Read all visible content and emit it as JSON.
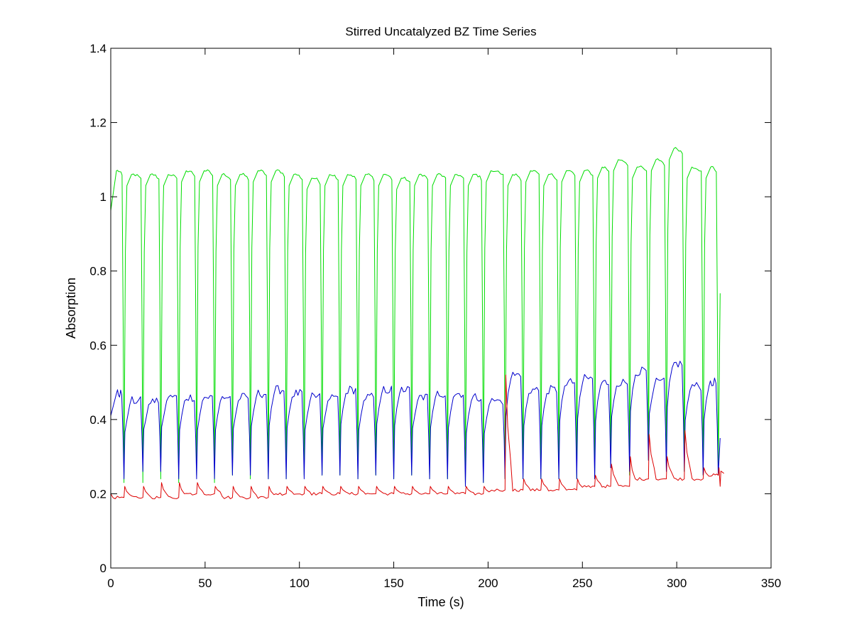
{
  "chart_data": {
    "type": "line",
    "title": "Stirred Uncatalyzed BZ Time Series",
    "xlabel": "Time (s)",
    "ylabel": "Absorption",
    "xlim": [
      0,
      350
    ],
    "ylim": [
      0,
      1.4
    ],
    "xticks": [
      0,
      50,
      100,
      150,
      200,
      250,
      300,
      350
    ],
    "xtick_labels": [
      "0",
      "50",
      "100",
      "150",
      "200",
      "250",
      "300",
      "350"
    ],
    "yticks": [
      0,
      0.2,
      0.4,
      0.6,
      0.8,
      1.0,
      1.2,
      1.4
    ],
    "ytick_labels": [
      "0",
      "0.2",
      "0.4",
      "0.6",
      "0.8",
      "1",
      "1.2",
      "1.4"
    ],
    "grid": false,
    "legend": "none",
    "series": [
      {
        "color": "#00dd00",
        "period_s": 9.5,
        "x_start": 0,
        "x_end": 323,
        "trough_times": [
          7,
          17,
          26.5,
          36,
          45.5,
          55,
          64.5,
          74,
          83.5,
          93,
          102.5,
          112,
          121.5,
          131,
          140.5,
          150,
          159.5,
          169,
          178.5,
          188,
          197.5,
          209,
          218.5,
          228,
          237.5,
          247,
          256.5,
          265,
          275,
          285,
          294.5,
          304,
          314,
          322
        ],
        "peak_values": [
          1.07,
          1.06,
          1.06,
          1.06,
          1.07,
          1.07,
          1.06,
          1.06,
          1.07,
          1.07,
          1.06,
          1.05,
          1.06,
          1.06,
          1.06,
          1.06,
          1.05,
          1.06,
          1.06,
          1.06,
          1.06,
          1.07,
          1.06,
          1.07,
          1.06,
          1.07,
          1.07,
          1.08,
          1.1,
          1.08,
          1.1,
          1.13,
          1.08,
          1.08,
          1.22
        ],
        "trough_values": [
          0.23,
          0.23,
          0.24,
          0.23,
          0.25,
          0.23,
          0.25,
          0.24,
          0.24,
          0.24,
          0.25,
          0.25,
          0.25,
          0.24,
          0.25,
          0.24,
          0.25,
          0.24,
          0.24,
          0.22,
          0.23,
          0.24,
          0.24,
          0.24,
          0.24,
          0.24,
          0.24,
          0.27,
          0.25,
          0.29,
          0.26,
          0.26,
          0.25,
          0.25,
          0.42
        ],
        "end_value": 0.74
      },
      {
        "color": "#0000cc",
        "period_s": 9.5,
        "x_start": 0,
        "x_end": 323,
        "trough_times": [
          7,
          17,
          26.5,
          36,
          45.5,
          55,
          64.5,
          74,
          83.5,
          93,
          102.5,
          112,
          121.5,
          131,
          140.5,
          150,
          159.5,
          169,
          178.5,
          188,
          197.5,
          209,
          218.5,
          228,
          237.5,
          247,
          256.5,
          265,
          275,
          285,
          294.5,
          304,
          314,
          322
        ],
        "peak_values": [
          0.47,
          0.45,
          0.45,
          0.46,
          0.46,
          0.46,
          0.46,
          0.46,
          0.47,
          0.48,
          0.47,
          0.46,
          0.46,
          0.48,
          0.46,
          0.48,
          0.48,
          0.46,
          0.47,
          0.47,
          0.46,
          0.45,
          0.52,
          0.48,
          0.48,
          0.5,
          0.51,
          0.5,
          0.5,
          0.53,
          0.5,
          0.55,
          0.49,
          0.5,
          0.6
        ],
        "trough_values": [
          0.24,
          0.26,
          0.26,
          0.24,
          0.24,
          0.24,
          0.25,
          0.25,
          0.24,
          0.24,
          0.24,
          0.25,
          0.25,
          0.24,
          0.25,
          0.24,
          0.25,
          0.24,
          0.24,
          0.22,
          0.23,
          0.24,
          0.24,
          0.24,
          0.24,
          0.24,
          0.24,
          0.27,
          0.26,
          0.29,
          0.26,
          0.26,
          0.25,
          0.25,
          0.23
        ],
        "start_value": 0.41,
        "end_value": 0.35
      },
      {
        "color": "#dd0000",
        "period_s": 9.5,
        "x_start": 0,
        "x_end": 323,
        "trough_times": [
          7,
          17,
          26.5,
          36,
          45.5,
          55,
          64.5,
          74,
          83.5,
          93,
          102.5,
          112,
          121.5,
          131,
          140.5,
          150,
          159.5,
          169,
          178.5,
          188,
          197.5,
          209,
          218.5,
          228,
          237.5,
          247,
          256.5,
          265,
          275,
          285,
          294.5,
          304,
          314,
          322
        ],
        "peak_values": [
          0.22,
          0.22,
          0.23,
          0.23,
          0.23,
          0.22,
          0.22,
          0.22,
          0.22,
          0.22,
          0.22,
          0.22,
          0.22,
          0.22,
          0.22,
          0.22,
          0.22,
          0.22,
          0.22,
          0.22,
          0.22,
          0.52,
          0.24,
          0.24,
          0.24,
          0.24,
          0.25,
          0.28,
          0.3,
          0.36,
          0.3,
          0.37,
          0.27,
          0.27,
          0.39
        ],
        "base_values": [
          0.19,
          0.19,
          0.19,
          0.19,
          0.2,
          0.2,
          0.19,
          0.19,
          0.19,
          0.2,
          0.2,
          0.2,
          0.2,
          0.2,
          0.2,
          0.2,
          0.2,
          0.2,
          0.2,
          0.2,
          0.2,
          0.21,
          0.21,
          0.21,
          0.21,
          0.21,
          0.22,
          0.22,
          0.22,
          0.24,
          0.24,
          0.24,
          0.24,
          0.25,
          0.2
        ],
        "start_value": 0.2,
        "end_value": 0.22
      }
    ]
  }
}
